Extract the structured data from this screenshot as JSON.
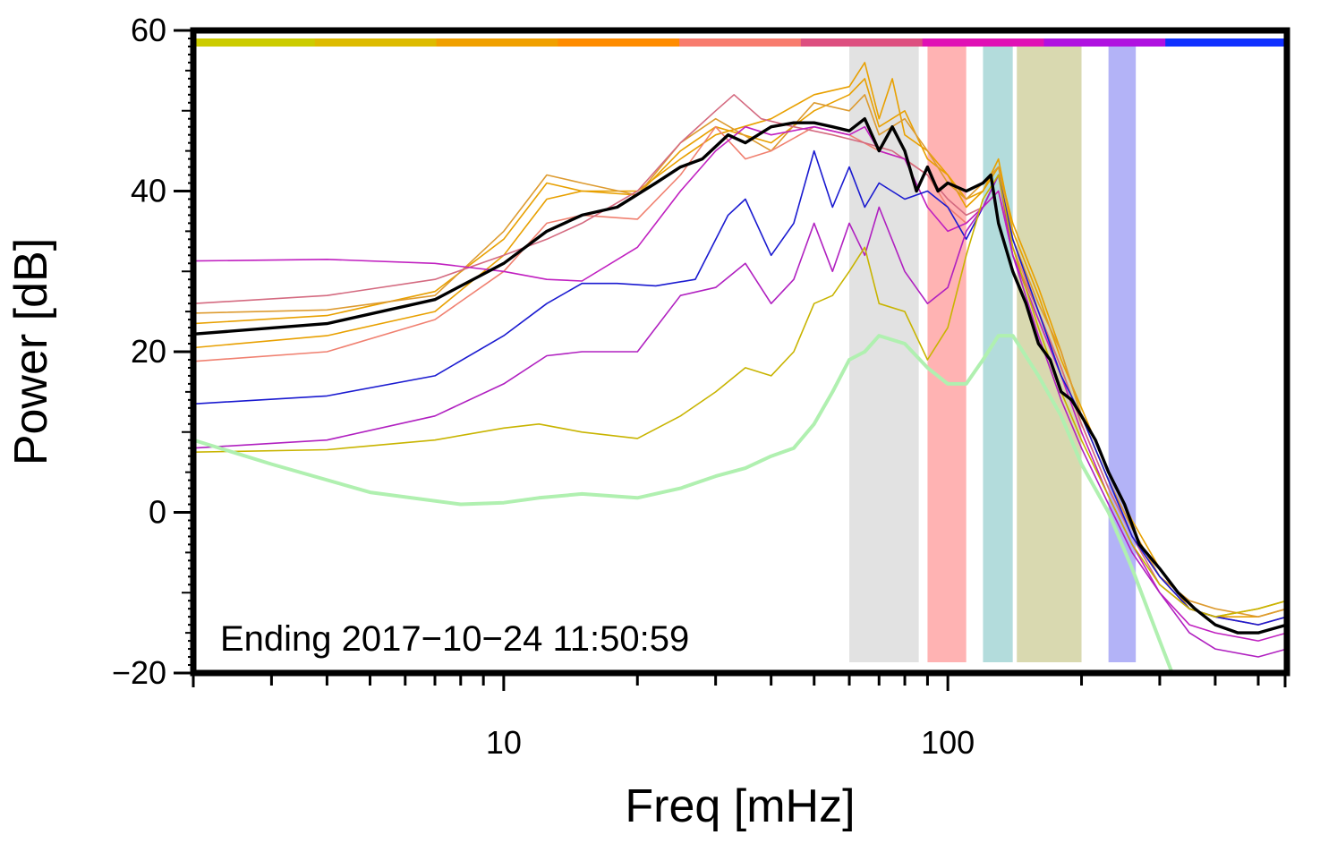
{
  "chart_data": {
    "type": "line",
    "title": "",
    "xlabel": "Freq [mHz]",
    "ylabel": "Power [dB]",
    "x_scale": "log",
    "xlim": [
      2,
      580
    ],
    "ylim": [
      -20,
      60
    ],
    "x_ticks": [
      10,
      100
    ],
    "x_tick_labels": [
      "10",
      "100"
    ],
    "y_ticks": [
      -20,
      0,
      20,
      40,
      60
    ],
    "y_tick_labels": [
      "−20",
      "0",
      "20",
      "40",
      "60"
    ],
    "grid": false,
    "annotation": "Ending 2017−10−24 11:50:59",
    "top_color_strip": [
      "#cccc00",
      "#ddbb00",
      "#f0a000",
      "#ff8c00",
      "#f87c6e",
      "#dd4f80",
      "#e011b5",
      "#b012e0",
      "#1030ff"
    ],
    "bands": [
      {
        "from": 60,
        "to": 86,
        "color": "#e2e2e2"
      },
      {
        "from": 90,
        "to": 110,
        "color": "#ffb3b3"
      },
      {
        "from": 120,
        "to": 140,
        "color": "#b3dcdc"
      },
      {
        "from": 143,
        "to": 200,
        "color": "#d9d9b0"
      },
      {
        "from": 230,
        "to": 265,
        "color": "#b3b3f7"
      }
    ],
    "series": [
      {
        "color": "#e8a000",
        "width": 1.6,
        "x": [
          2,
          4,
          7,
          10,
          12.5,
          15,
          20,
          25,
          30,
          40,
          50,
          60,
          65,
          70,
          75,
          80,
          90,
          100,
          110,
          120,
          130,
          140,
          160,
          180,
          200,
          230,
          260,
          300,
          350,
          400,
          500,
          580
        ],
        "y": [
          23.5,
          24.5,
          27.5,
          34,
          41,
          40,
          40,
          44,
          47,
          49,
          52,
          53,
          56,
          49,
          54,
          47,
          45,
          42,
          39,
          40,
          43,
          36,
          28,
          20,
          12,
          4,
          -2,
          -8,
          -12,
          -13,
          -12,
          -11
        ]
      },
      {
        "color": "#e8a000",
        "width": 1.6,
        "x": [
          2,
          4,
          7,
          10,
          12.5,
          15,
          20,
          25,
          30,
          40,
          50,
          60,
          65,
          70,
          80,
          90,
          100,
          110,
          120,
          130,
          140,
          160,
          180,
          200,
          230,
          260,
          300,
          350,
          400,
          500,
          580
        ],
        "y": [
          20.5,
          22,
          25,
          32,
          39,
          40,
          39.5,
          45,
          48,
          46,
          50,
          52,
          54,
          48,
          50,
          44,
          42,
          38,
          40,
          44,
          35,
          27,
          19,
          13,
          5,
          -1,
          -7,
          -12,
          -13,
          -13,
          -12
        ]
      },
      {
        "color": "#dd9b30",
        "width": 1.6,
        "x": [
          2,
          4,
          7,
          10,
          12.5,
          15,
          20,
          25,
          30,
          40,
          50,
          60,
          65,
          70,
          80,
          90,
          100,
          110,
          120,
          130,
          140,
          160,
          180,
          200,
          230,
          260,
          300,
          350,
          400,
          500,
          580
        ],
        "y": [
          24.8,
          25.2,
          27,
          35,
          42,
          41,
          39.5,
          46,
          49,
          45,
          51,
          50,
          52,
          47,
          49,
          45,
          41,
          39,
          41,
          43,
          34,
          26,
          20,
          12,
          4,
          -2,
          -8,
          -11,
          -12,
          -13,
          -12
        ]
      },
      {
        "color": "#f08070",
        "width": 1.6,
        "x": [
          2,
          4,
          7,
          10,
          12.5,
          15,
          20,
          25,
          30,
          35,
          40,
          50,
          60,
          70,
          80,
          90,
          100,
          110,
          120,
          130,
          140,
          160,
          180,
          200,
          230,
          260,
          300,
          350,
          400,
          500,
          580
        ],
        "y": [
          18.8,
          20,
          24,
          30,
          36,
          37,
          36.5,
          42,
          48,
          44,
          45,
          48,
          47,
          45,
          44,
          42,
          38,
          36,
          38,
          40,
          33,
          25,
          18,
          11,
          3,
          -3,
          -8,
          -12,
          -13,
          -14,
          -13
        ]
      },
      {
        "color": "#d46a80",
        "width": 1.6,
        "x": [
          2,
          4,
          7,
          10,
          12.5,
          15,
          20,
          25,
          30,
          33,
          38,
          45,
          55,
          65,
          75,
          90,
          100,
          110,
          120,
          130,
          140,
          160,
          180,
          200,
          230,
          260,
          300,
          350,
          400,
          500,
          580
        ],
        "y": [
          26,
          27,
          29,
          32,
          34,
          36,
          40,
          46,
          50,
          52,
          49,
          48,
          47,
          46,
          45,
          42,
          39,
          37,
          38,
          40,
          32,
          25,
          18,
          11,
          3,
          -3,
          -9,
          -12,
          -13,
          -14,
          -13
        ]
      },
      {
        "color": "#c020c0",
        "width": 1.6,
        "x": [
          2,
          4,
          7,
          10,
          12.5,
          15,
          20,
          25,
          30,
          35,
          40,
          50,
          60,
          65,
          70,
          80,
          90,
          100,
          110,
          120,
          130,
          140,
          160,
          180,
          200,
          230,
          260,
          300,
          350,
          400,
          500,
          580
        ],
        "y": [
          31.3,
          31.5,
          31,
          30,
          29,
          28.8,
          33,
          40,
          45,
          48,
          47,
          48,
          47,
          48,
          45,
          44,
          38,
          35,
          36,
          38,
          40,
          32,
          24,
          17,
          10,
          2,
          -4,
          -10,
          -14,
          -15,
          -16,
          -15
        ]
      },
      {
        "color": "#1a1ad0",
        "width": 1.6,
        "x": [
          2,
          4,
          7,
          10,
          12.5,
          15,
          18,
          22,
          27,
          32,
          35,
          40,
          45,
          50,
          55,
          60,
          65,
          70,
          80,
          90,
          100,
          110,
          120,
          130,
          140,
          160,
          180,
          200,
          230,
          260,
          300,
          350,
          400,
          500,
          580
        ],
        "y": [
          13.5,
          14.5,
          17,
          22,
          26,
          28.5,
          28.5,
          28.2,
          29,
          37,
          39,
          32,
          36,
          45,
          38,
          43,
          38,
          41,
          39,
          40,
          38,
          34,
          38,
          42,
          34,
          25,
          17,
          12,
          4,
          -3,
          -8,
          -12,
          -13,
          -14,
          -13
        ]
      },
      {
        "color": "#b020c0",
        "width": 1.6,
        "x": [
          2,
          4,
          7,
          10,
          12.5,
          15,
          20,
          25,
          30,
          35,
          40,
          45,
          50,
          55,
          60,
          65,
          70,
          80,
          90,
          100,
          110,
          120,
          130,
          140,
          160,
          180,
          200,
          230,
          260,
          300,
          350,
          400,
          500,
          580
        ],
        "y": [
          8,
          9,
          12,
          16,
          19.5,
          20,
          20,
          27,
          28,
          31,
          26,
          29,
          36,
          30,
          36,
          32,
          38,
          30,
          26,
          28,
          35,
          38,
          42,
          32,
          22,
          14,
          8,
          1,
          -5,
          -10,
          -15,
          -17,
          -18,
          -17
        ]
      },
      {
        "color": "#c8b400",
        "width": 1.6,
        "x": [
          2,
          4,
          7,
          10,
          12,
          15,
          20,
          25,
          30,
          35,
          40,
          45,
          50,
          55,
          60,
          65,
          70,
          80,
          90,
          100,
          110,
          120,
          130,
          140,
          160,
          180,
          200,
          230,
          260,
          300,
          350,
          400,
          500,
          580
        ],
        "y": [
          7.5,
          7.8,
          9,
          10.5,
          11,
          10,
          9.2,
          12,
          15,
          18,
          17,
          20,
          26,
          27,
          30,
          33,
          26,
          25,
          19,
          23,
          32,
          39,
          42,
          33,
          23,
          15,
          9,
          2,
          -4,
          -9,
          -12,
          -13,
          -12,
          -11
        ]
      },
      {
        "color": "#b0f0b0",
        "width": 4,
        "x": [
          2,
          3,
          5,
          8,
          10,
          12,
          15,
          20,
          25,
          30,
          35,
          40,
          45,
          50,
          55,
          60,
          65,
          70,
          80,
          90,
          100,
          110,
          120,
          130,
          140,
          160,
          180,
          200,
          230,
          260,
          300,
          320
        ],
        "y": [
          9,
          6,
          2.5,
          1,
          1.2,
          1.8,
          2.3,
          1.8,
          3,
          4.5,
          5.5,
          7,
          8,
          11,
          15,
          19,
          20,
          22,
          21,
          18,
          16,
          16,
          19,
          22,
          22,
          17,
          12,
          6,
          0,
          -7,
          -16,
          -20
        ]
      },
      {
        "color": "#000000",
        "width": 3.4,
        "x": [
          2,
          4,
          7,
          10,
          12.5,
          15,
          18,
          22,
          25,
          28,
          32,
          35,
          40,
          45,
          50,
          55,
          60,
          65,
          70,
          75,
          80,
          85,
          90,
          95,
          100,
          110,
          120,
          125,
          130,
          140,
          150,
          160,
          170,
          180,
          190,
          200,
          215,
          230,
          250,
          270,
          300,
          330,
          360,
          400,
          450,
          500,
          580
        ],
        "y": [
          22.2,
          23.5,
          26.5,
          31,
          35,
          37,
          38,
          41,
          43,
          44,
          47,
          46,
          48,
          48.5,
          48.5,
          48,
          47.5,
          49,
          45,
          48,
          45,
          40,
          43,
          40,
          41,
          40,
          41,
          42,
          36,
          30,
          26,
          21,
          19,
          15,
          14,
          12,
          9,
          5,
          1,
          -4,
          -7,
          -10,
          -12,
          -14,
          -15,
          -15,
          -14
        ]
      }
    ]
  }
}
